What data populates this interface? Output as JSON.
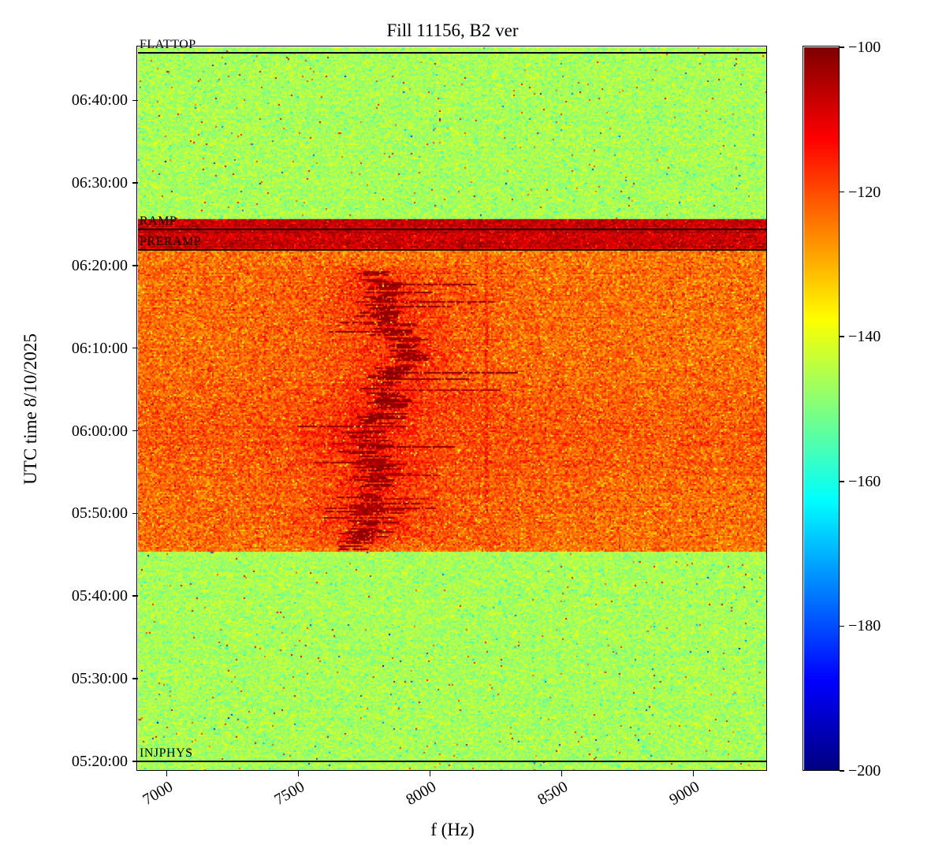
{
  "chart_data": {
    "type": "heatmap",
    "title": "Fill 11156, B2 ver",
    "xlabel": "f (Hz)",
    "ylabel": "UTC time 8/10/2025",
    "colormap": "jet",
    "grid": false,
    "x_extent_hz": [
      6890,
      9280
    ],
    "y_extent_time": [
      "05:18:50",
      "06:46:25"
    ],
    "x_ticks": [
      {
        "value": 7000,
        "label": "7000"
      },
      {
        "value": 7500,
        "label": "7500"
      },
      {
        "value": 8000,
        "label": "8000"
      },
      {
        "value": 8500,
        "label": "8500"
      },
      {
        "value": 9000,
        "label": "9000"
      }
    ],
    "y_ticks": [
      {
        "time": "05:20:00",
        "label": "05:20:00"
      },
      {
        "time": "05:30:00",
        "label": "05:30:00"
      },
      {
        "time": "05:40:00",
        "label": "05:40:00"
      },
      {
        "time": "05:50:00",
        "label": "05:50:00"
      },
      {
        "time": "06:00:00",
        "label": "06:00:00"
      },
      {
        "time": "06:10:00",
        "label": "06:10:00"
      },
      {
        "time": "06:20:00",
        "label": "06:20:00"
      },
      {
        "time": "06:30:00",
        "label": "06:30:00"
      },
      {
        "time": "06:40:00",
        "label": "06:40:00"
      }
    ],
    "colorbar": {
      "vmin": -200,
      "vmax": -100,
      "ticks": [
        {
          "value": -100,
          "label": "−100"
        },
        {
          "value": -120,
          "label": "−120"
        },
        {
          "value": -140,
          "label": "−140"
        },
        {
          "value": -160,
          "label": "−160"
        },
        {
          "value": -180,
          "label": "−180"
        },
        {
          "value": -200,
          "label": "−200"
        }
      ]
    },
    "annotations": [
      {
        "label": "FLATTOP",
        "time": "06:45:45"
      },
      {
        "label": "RAMP",
        "time": "06:24:20"
      },
      {
        "label": "PRERAMP",
        "time": "06:21:55"
      },
      {
        "label": "INJPHYS",
        "time": "05:20:00"
      }
    ],
    "regions": [
      {
        "name": "injphys-plateau",
        "t_start": "05:18:50",
        "t_end": "05:45:25",
        "mean_db": -146
      },
      {
        "name": "preramp-plateau",
        "t_start": "05:45:25",
        "t_end": "06:21:55",
        "mean_db": -123.5
      },
      {
        "name": "ramp-band",
        "t_start": "06:21:55",
        "t_end": "06:25:40",
        "mean_db": -107
      },
      {
        "name": "flattop-plateau",
        "t_start": "06:25:40",
        "t_end": "06:46:25",
        "mean_db": -146
      }
    ],
    "features": [
      {
        "name": "b2-spectral-line-cluster",
        "f_center_hz": 7810,
        "f_wander_hz": 90,
        "t_start": "05:45:30",
        "t_end": "06:21:00",
        "peak_db": -101
      },
      {
        "name": "faint-vertical-line",
        "f_hz": 8215,
        "t_start": "05:50:00",
        "t_end": "06:21:55",
        "extra_db": 4.5
      }
    ]
  }
}
